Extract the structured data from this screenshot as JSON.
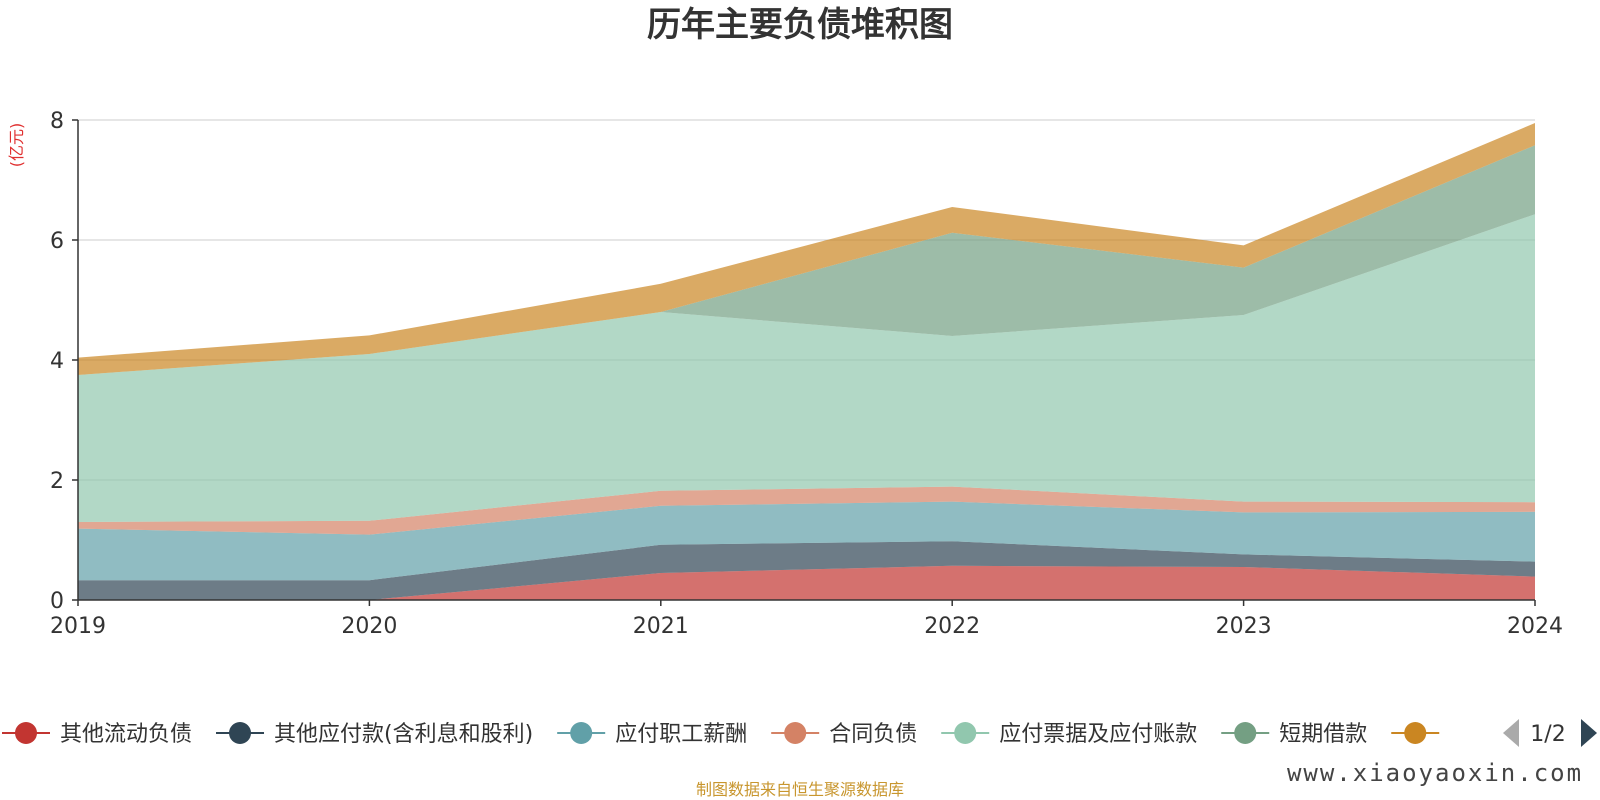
{
  "chart_data": {
    "type": "area",
    "title": "历年主要负债堆积图",
    "unit_label": "(亿元)",
    "categories": [
      "2019",
      "2020",
      "2021",
      "2022",
      "2023",
      "2024"
    ],
    "y_ticks": [
      "0",
      "2",
      "4",
      "6",
      "8"
    ],
    "ylim": [
      0,
      8
    ],
    "grid": true,
    "stacked": true,
    "series": [
      {
        "name": "其他流动负债",
        "color": "#c23531",
        "values": [
          0.0,
          0.0,
          0.45,
          0.57,
          0.55,
          0.39
        ]
      },
      {
        "name": "其他应付款(含利息和股利)",
        "color": "#2f4554",
        "values": [
          0.33,
          0.33,
          0.47,
          0.41,
          0.21,
          0.25
        ]
      },
      {
        "name": "应付职工薪酬",
        "color": "#61a0a8",
        "values": [
          0.86,
          0.76,
          0.65,
          0.66,
          0.7,
          0.83
        ]
      },
      {
        "name": "合同负债",
        "color": "#d48265",
        "values": [
          0.11,
          0.23,
          0.25,
          0.25,
          0.18,
          0.16
        ]
      },
      {
        "name": "应付票据及应付账款",
        "color": "#91c7ae",
        "values": [
          2.45,
          2.78,
          2.98,
          2.51,
          3.11,
          4.8
        ]
      },
      {
        "name": "短期借款",
        "color": "#749f83",
        "values": [
          0.0,
          0.0,
          0.0,
          1.72,
          0.79,
          1.15
        ]
      },
      {
        "name": "",
        "color": "#ca8622",
        "values": [
          0.29,
          0.31,
          0.47,
          0.43,
          0.37,
          0.37
        ]
      }
    ],
    "legend_position": "bottom",
    "legend_page": "1/2",
    "source_note": "制图数据来自恒生聚源数据库",
    "watermark": "www.xiaoyaoxin.com"
  }
}
